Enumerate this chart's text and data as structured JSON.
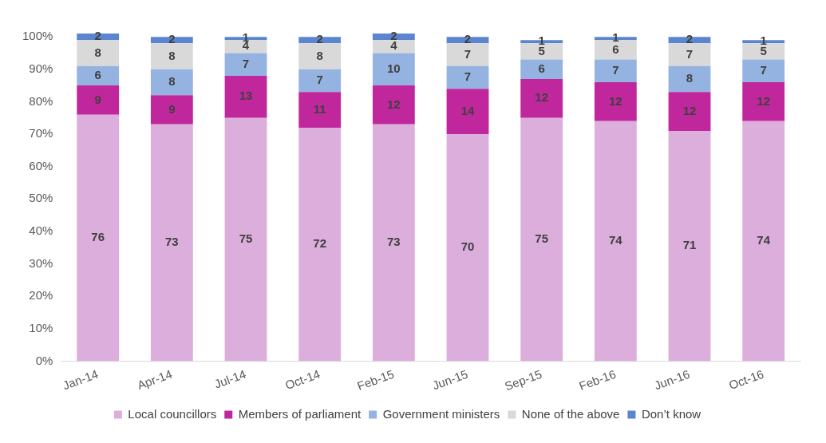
{
  "chart_data": {
    "type": "bar",
    "stacked": true,
    "data_labels": true,
    "legend": "bottom",
    "grid": false,
    "categories": [
      "Jan-14",
      "Apr-14",
      "Jul-14",
      "Oct-14",
      "Feb-15",
      "Jun-15",
      "Sep-15",
      "Feb-16",
      "Jun-16",
      "Oct-16"
    ],
    "ylim": [
      0,
      102
    ],
    "yticks": [
      {
        "value": 0,
        "label": "0%"
      },
      {
        "value": 10,
        "label": "10%"
      },
      {
        "value": 20,
        "label": "20%"
      },
      {
        "value": 30,
        "label": "30%"
      },
      {
        "value": 40,
        "label": "40%"
      },
      {
        "value": 50,
        "label": "50%"
      },
      {
        "value": 60,
        "label": "60%"
      },
      {
        "value": 70,
        "label": "70%"
      },
      {
        "value": 80,
        "label": "80%"
      },
      {
        "value": 90,
        "label": "90%"
      },
      {
        "value": 100,
        "label": "100%"
      }
    ],
    "series": [
      {
        "name": "Local councillors",
        "color": "#dcaedc",
        "values": [
          76,
          73,
          75,
          72,
          73,
          70,
          75,
          74,
          71,
          74
        ]
      },
      {
        "name": "Members of parliament",
        "color": "#c0279c",
        "values": [
          9,
          9,
          13,
          11,
          12,
          14,
          12,
          12,
          12,
          12
        ]
      },
      {
        "name": "Government ministers",
        "color": "#95b3e0",
        "values": [
          6,
          8,
          7,
          7,
          10,
          7,
          6,
          7,
          8,
          7
        ]
      },
      {
        "name": "None of the above",
        "color": "#d9d9d9",
        "values": [
          8,
          8,
          4,
          8,
          4,
          7,
          5,
          6,
          7,
          5
        ]
      },
      {
        "name": "Don’t know",
        "color": "#5b86cf",
        "values": [
          2,
          2,
          1,
          2,
          2,
          2,
          1,
          1,
          2,
          1
        ]
      }
    ]
  }
}
